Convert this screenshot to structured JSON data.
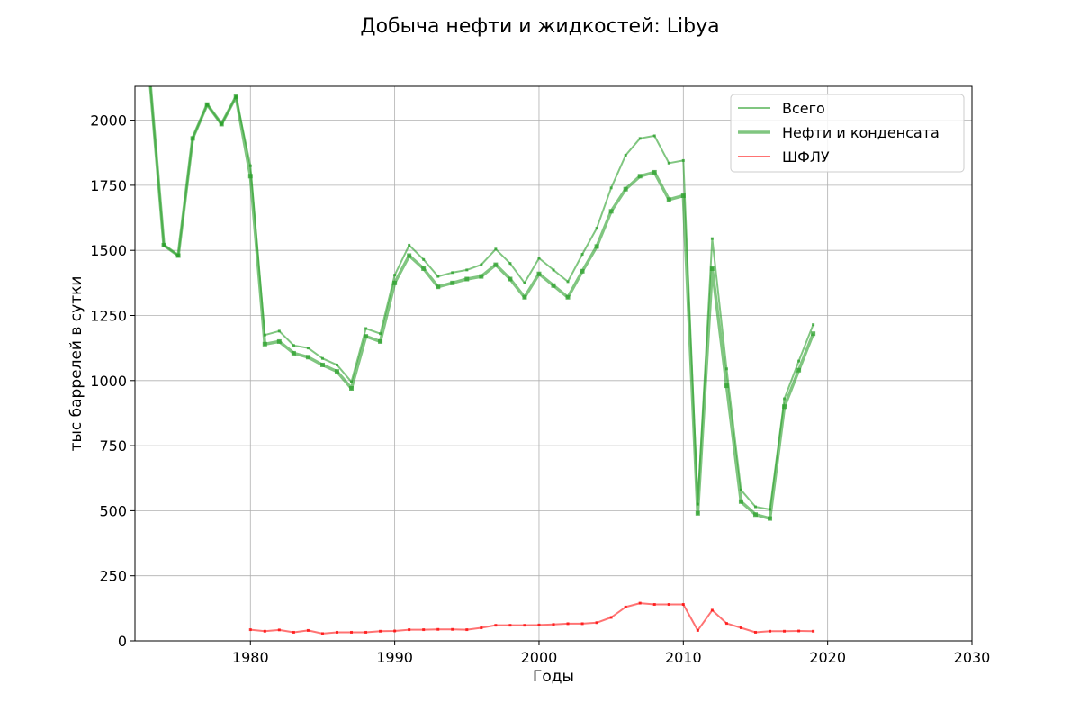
{
  "chart_data": {
    "type": "line",
    "title": "Добыча нефти и жидкостей: Libya",
    "xlabel": "Годы",
    "ylabel": "тыс баррелей в сутки",
    "xlim": [
      1972,
      2030
    ],
    "ylim": [
      0,
      2130
    ],
    "xticks": [
      1980,
      1990,
      2000,
      2010,
      2020,
      2030
    ],
    "yticks": [
      0,
      250,
      500,
      750,
      1000,
      1250,
      1500,
      1750,
      2000
    ],
    "grid": true,
    "legend_position": "top-right",
    "series": [
      {
        "name": "Всего",
        "color": "#2ca02c",
        "x": [
          1973,
          1974,
          1975,
          1976,
          1977,
          1978,
          1979,
          1980,
          1981,
          1982,
          1983,
          1984,
          1985,
          1986,
          1987,
          1988,
          1989,
          1990,
          1991,
          1992,
          1993,
          1994,
          1995,
          1996,
          1997,
          1998,
          1999,
          2000,
          2001,
          2002,
          2003,
          2004,
          2005,
          2006,
          2007,
          2008,
          2009,
          2010,
          2011,
          2012,
          2013,
          2014,
          2015,
          2016,
          2017,
          2018,
          2019
        ],
        "y": [
          2180,
          1520,
          1480,
          1930,
          2060,
          1985,
          2090,
          1825,
          1175,
          1190,
          1135,
          1125,
          1085,
          1060,
          995,
          1200,
          1180,
          1405,
          1520,
          1465,
          1400,
          1415,
          1425,
          1445,
          1505,
          1450,
          1375,
          1470,
          1425,
          1380,
          1485,
          1585,
          1740,
          1865,
          1930,
          1940,
          1835,
          1845,
          525,
          1545,
          1045,
          580,
          515,
          505,
          930,
          1075,
          1215
        ]
      },
      {
        "name": "Нефти и конденсата",
        "color": "#2ca02c",
        "x": [
          1973,
          1974,
          1975,
          1976,
          1977,
          1978,
          1979,
          1980,
          1981,
          1982,
          1983,
          1984,
          1985,
          1986,
          1987,
          1988,
          1989,
          1990,
          1991,
          1992,
          1993,
          1994,
          1995,
          1996,
          1997,
          1998,
          1999,
          2000,
          2001,
          2002,
          2003,
          2004,
          2005,
          2006,
          2007,
          2008,
          2009,
          2010,
          2011,
          2012,
          2013,
          2014,
          2015,
          2016,
          2017,
          2018,
          2019
        ],
        "y": [
          2180,
          1520,
          1480,
          1930,
          2060,
          1985,
          2090,
          1785,
          1140,
          1150,
          1105,
          1090,
          1060,
          1035,
          970,
          1170,
          1150,
          1375,
          1480,
          1430,
          1360,
          1375,
          1390,
          1400,
          1445,
          1390,
          1320,
          1410,
          1365,
          1320,
          1420,
          1515,
          1650,
          1735,
          1785,
          1800,
          1695,
          1710,
          490,
          1430,
          980,
          535,
          485,
          470,
          900,
          1040,
          1180
        ]
      },
      {
        "name": "ШФЛУ",
        "color": "#ff0000",
        "x": [
          1980,
          1981,
          1982,
          1983,
          1984,
          1985,
          1986,
          1987,
          1988,
          1989,
          1990,
          1991,
          1992,
          1993,
          1994,
          1995,
          1996,
          1997,
          1998,
          1999,
          2000,
          2001,
          2002,
          2003,
          2004,
          2005,
          2006,
          2007,
          2008,
          2009,
          2010,
          2011,
          2012,
          2013,
          2014,
          2015,
          2016,
          2017,
          2018,
          2019
        ],
        "y": [
          43,
          37,
          42,
          33,
          40,
          28,
          33,
          33,
          33,
          37,
          38,
          43,
          43,
          44,
          44,
          43,
          50,
          60,
          60,
          60,
          61,
          63,
          66,
          66,
          70,
          90,
          130,
          145,
          140,
          140,
          140,
          40,
          118,
          67,
          50,
          33,
          37,
          37,
          38,
          37
        ]
      }
    ]
  }
}
